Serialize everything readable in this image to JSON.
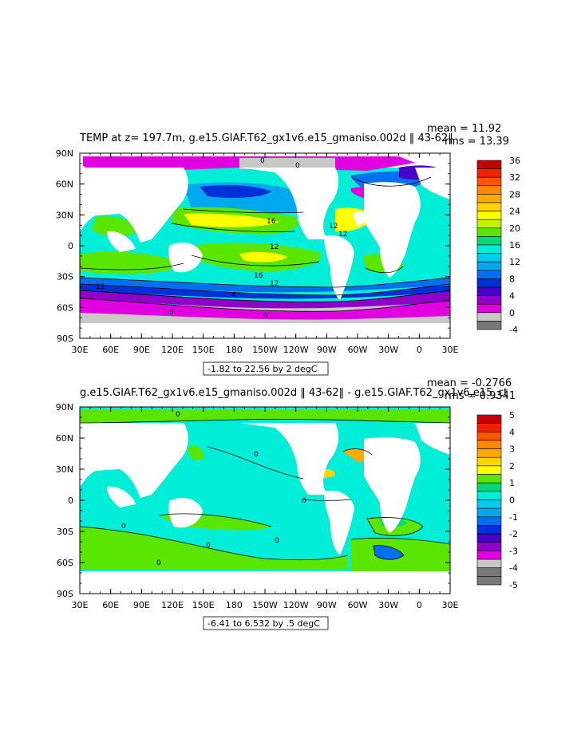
{
  "panel1": {
    "title": "TEMP at z= 197.7m, g.e15.GIAF.T62_gx1v6.e15_gmaniso.002d ‖ 43-62‖",
    "mean_text": "mean = 11.92",
    "rms_text": "rms = 13.39",
    "range_text": "-1.82 to 22.56 by 2 degC",
    "colorbar_labels": [
      "36",
      "32",
      "28",
      "24",
      "20",
      "16",
      "12",
      "8",
      "4",
      "0",
      "-4"
    ],
    "colorbar_colors": [
      "#c80000",
      "#ee2200",
      "#ff5500",
      "#ff8800",
      "#ffaa00",
      "#ffd400",
      "#ffff00",
      "#c8f000",
      "#5ae600",
      "#00d878",
      "#00eed8",
      "#00ccee",
      "#00a8f0",
      "#0070f0",
      "#0030d8",
      "#4800c8",
      "#9000c8",
      "#e000e0",
      "#c8c8c8",
      "#787878"
    ],
    "contour_labels": [
      "0",
      "0",
      "16",
      "12",
      "16",
      "12",
      "12",
      "4",
      "0",
      "0",
      "12",
      "12"
    ]
  },
  "panel2": {
    "title": "g.e15.GIAF.T62_gx1v6.e15_gmaniso.002d ‖ 43-62‖ - g.e15.GIAF.T62_gx1v6.e15_ct",
    "mean_text": "mean = -0.2766",
    "rms_text": "rms = 0.9341",
    "range_text": "-6.41 to 6.532 by .5 degC",
    "colorbar_labels": [
      "5",
      "4",
      "3",
      "2",
      "1",
      "0",
      "-1",
      "-2",
      "-3",
      "-4",
      "-5"
    ],
    "colorbar_colors": [
      "#c80000",
      "#ee2200",
      "#ff5500",
      "#ff8800",
      "#ffaa00",
      "#ffd400",
      "#ffff00",
      "#5ae600",
      "#00d878",
      "#00eed8",
      "#00ccee",
      "#00a8f0",
      "#0070f0",
      "#0030d8",
      "#4800c8",
      "#9000c8",
      "#e000e0",
      "#c8c8c8",
      "#787878",
      "#787878"
    ],
    "contour_labels": [
      "0",
      "0",
      "0",
      "0",
      "0",
      "0",
      "0"
    ]
  },
  "axes": {
    "lat_labels": [
      "90N",
      "60N",
      "30N",
      "0",
      "30S",
      "60S",
      "90S"
    ],
    "lon_labels": [
      "30E",
      "60E",
      "90E",
      "120E",
      "150E",
      "180",
      "150W",
      "120W",
      "90W",
      "60W",
      "30W",
      "0",
      "30E"
    ]
  }
}
